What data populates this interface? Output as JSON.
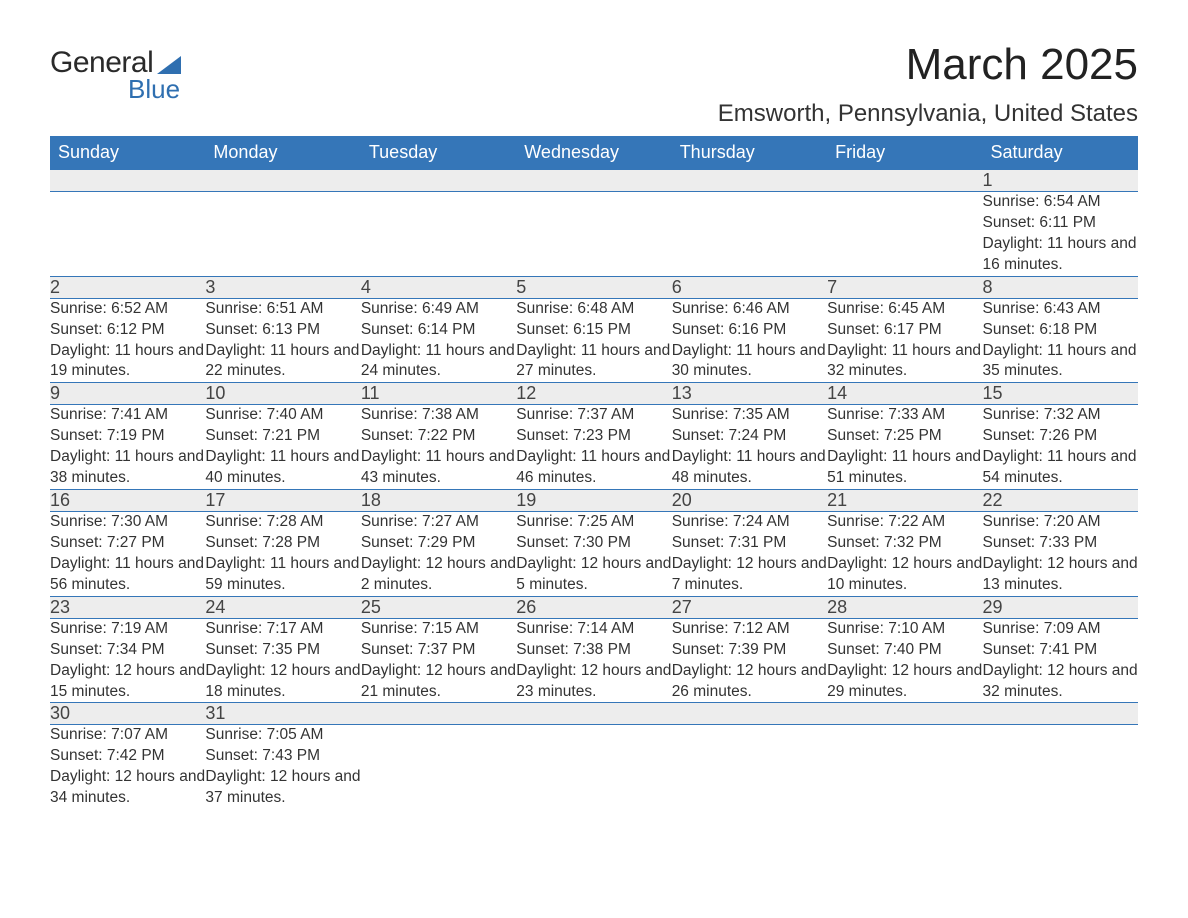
{
  "logo": {
    "word1": "General",
    "word2": "Blue"
  },
  "title": "March 2025",
  "location": "Emsworth, Pennsylvania, United States",
  "day_headers": [
    "Sunday",
    "Monday",
    "Tuesday",
    "Wednesday",
    "Thursday",
    "Friday",
    "Saturday"
  ],
  "colors": {
    "header_bg": "#3576b8",
    "header_fg": "#ffffff",
    "daynum_bg": "#ededed",
    "row_border": "#3576b8",
    "text": "#333333",
    "logo_blue": "#2f6fb0"
  },
  "fonts": {
    "title_size_pt": 33,
    "location_size_pt": 18,
    "header_size_pt": 14,
    "daynum_size_pt": 14,
    "body_size_pt": 12
  },
  "weeks": [
    [
      null,
      null,
      null,
      null,
      null,
      null,
      {
        "n": "1",
        "sr": "6:54 AM",
        "ss": "6:11 PM",
        "dl": "11 hours and 16 minutes."
      }
    ],
    [
      {
        "n": "2",
        "sr": "6:52 AM",
        "ss": "6:12 PM",
        "dl": "11 hours and 19 minutes."
      },
      {
        "n": "3",
        "sr": "6:51 AM",
        "ss": "6:13 PM",
        "dl": "11 hours and 22 minutes."
      },
      {
        "n": "4",
        "sr": "6:49 AM",
        "ss": "6:14 PM",
        "dl": "11 hours and 24 minutes."
      },
      {
        "n": "5",
        "sr": "6:48 AM",
        "ss": "6:15 PM",
        "dl": "11 hours and 27 minutes."
      },
      {
        "n": "6",
        "sr": "6:46 AM",
        "ss": "6:16 PM",
        "dl": "11 hours and 30 minutes."
      },
      {
        "n": "7",
        "sr": "6:45 AM",
        "ss": "6:17 PM",
        "dl": "11 hours and 32 minutes."
      },
      {
        "n": "8",
        "sr": "6:43 AM",
        "ss": "6:18 PM",
        "dl": "11 hours and 35 minutes."
      }
    ],
    [
      {
        "n": "9",
        "sr": "7:41 AM",
        "ss": "7:19 PM",
        "dl": "11 hours and 38 minutes."
      },
      {
        "n": "10",
        "sr": "7:40 AM",
        "ss": "7:21 PM",
        "dl": "11 hours and 40 minutes."
      },
      {
        "n": "11",
        "sr": "7:38 AM",
        "ss": "7:22 PM",
        "dl": "11 hours and 43 minutes."
      },
      {
        "n": "12",
        "sr": "7:37 AM",
        "ss": "7:23 PM",
        "dl": "11 hours and 46 minutes."
      },
      {
        "n": "13",
        "sr": "7:35 AM",
        "ss": "7:24 PM",
        "dl": "11 hours and 48 minutes."
      },
      {
        "n": "14",
        "sr": "7:33 AM",
        "ss": "7:25 PM",
        "dl": "11 hours and 51 minutes."
      },
      {
        "n": "15",
        "sr": "7:32 AM",
        "ss": "7:26 PM",
        "dl": "11 hours and 54 minutes."
      }
    ],
    [
      {
        "n": "16",
        "sr": "7:30 AM",
        "ss": "7:27 PM",
        "dl": "11 hours and 56 minutes."
      },
      {
        "n": "17",
        "sr": "7:28 AM",
        "ss": "7:28 PM",
        "dl": "11 hours and 59 minutes."
      },
      {
        "n": "18",
        "sr": "7:27 AM",
        "ss": "7:29 PM",
        "dl": "12 hours and 2 minutes."
      },
      {
        "n": "19",
        "sr": "7:25 AM",
        "ss": "7:30 PM",
        "dl": "12 hours and 5 minutes."
      },
      {
        "n": "20",
        "sr": "7:24 AM",
        "ss": "7:31 PM",
        "dl": "12 hours and 7 minutes."
      },
      {
        "n": "21",
        "sr": "7:22 AM",
        "ss": "7:32 PM",
        "dl": "12 hours and 10 minutes."
      },
      {
        "n": "22",
        "sr": "7:20 AM",
        "ss": "7:33 PM",
        "dl": "12 hours and 13 minutes."
      }
    ],
    [
      {
        "n": "23",
        "sr": "7:19 AM",
        "ss": "7:34 PM",
        "dl": "12 hours and 15 minutes."
      },
      {
        "n": "24",
        "sr": "7:17 AM",
        "ss": "7:35 PM",
        "dl": "12 hours and 18 minutes."
      },
      {
        "n": "25",
        "sr": "7:15 AM",
        "ss": "7:37 PM",
        "dl": "12 hours and 21 minutes."
      },
      {
        "n": "26",
        "sr": "7:14 AM",
        "ss": "7:38 PM",
        "dl": "12 hours and 23 minutes."
      },
      {
        "n": "27",
        "sr": "7:12 AM",
        "ss": "7:39 PM",
        "dl": "12 hours and 26 minutes."
      },
      {
        "n": "28",
        "sr": "7:10 AM",
        "ss": "7:40 PM",
        "dl": "12 hours and 29 minutes."
      },
      {
        "n": "29",
        "sr": "7:09 AM",
        "ss": "7:41 PM",
        "dl": "12 hours and 32 minutes."
      }
    ],
    [
      {
        "n": "30",
        "sr": "7:07 AM",
        "ss": "7:42 PM",
        "dl": "12 hours and 34 minutes."
      },
      {
        "n": "31",
        "sr": "7:05 AM",
        "ss": "7:43 PM",
        "dl": "12 hours and 37 minutes."
      },
      null,
      null,
      null,
      null,
      null
    ]
  ],
  "labels": {
    "sunrise": "Sunrise:",
    "sunset": "Sunset:",
    "daylight": "Daylight:"
  }
}
